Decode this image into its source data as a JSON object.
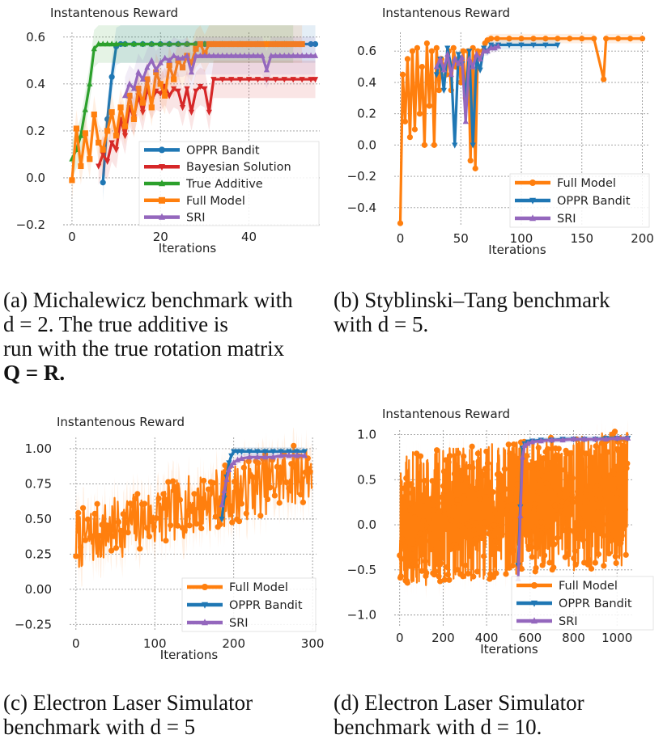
{
  "colors": {
    "oppr": "#1f77b4",
    "bayes": "#d62728",
    "true_additive": "#2ca02c",
    "full_model": "#ff7f0e",
    "sri": "#9467bd"
  },
  "captions": {
    "a": [
      "(a) Michalewicz benchmark with",
      "d = 2. The true additive is",
      "run with the true rotation matrix",
      "Q = R."
    ],
    "b": [
      "(b) Styblinski–Tang benchmark",
      "with d = 5."
    ],
    "c": [
      "(c) Electron Laser Simulator",
      "benchmark with d = 5"
    ],
    "d": [
      "(d) Electron Laser Simulator",
      "benchmark with d = 10."
    ]
  },
  "chart_data": [
    {
      "id": "a",
      "type": "line",
      "title": "Instantenous Reward",
      "xlabel": "Iterations",
      "ylabel": "",
      "xlim": [
        -2,
        56
      ],
      "ylim": [
        -0.2,
        0.62
      ],
      "xticks": [
        0,
        20,
        40
      ],
      "yticks": [
        -0.2,
        0.0,
        0.2,
        0.4,
        0.6
      ],
      "ytick_labels": [
        "−0.2",
        "0.0",
        "0.2",
        "0.4",
        "0.6"
      ],
      "legend": [
        "OPPR Bandit",
        "Bayesian Solution",
        "True Additive",
        "Full Model",
        "SRI"
      ],
      "legend_position": "lower-right",
      "series": [
        {
          "name": "OPPR Bandit",
          "color_key": "oppr",
          "marker": "circle",
          "x": [
            7,
            8,
            9,
            10,
            11,
            12,
            14,
            16,
            18,
            20,
            22,
            24,
            26,
            28,
            30,
            32,
            34,
            36,
            38,
            40,
            42,
            44,
            46,
            48,
            50,
            52,
            54,
            55
          ],
          "y": [
            -0.02,
            0.25,
            0.43,
            0.56,
            0.57,
            0.57,
            0.57,
            0.57,
            0.57,
            0.57,
            0.57,
            0.57,
            0.57,
            0.57,
            0.57,
            0.57,
            0.57,
            0.57,
            0.57,
            0.57,
            0.57,
            0.57,
            0.57,
            0.57,
            0.57,
            0.57,
            0.57,
            0.57
          ]
        },
        {
          "name": "Bayesian Solution",
          "color_key": "bayes",
          "marker": "triangle-down",
          "x": [
            6,
            7,
            8,
            9,
            10,
            11,
            12,
            13,
            14,
            15,
            16,
            17,
            18,
            19,
            20,
            21,
            22,
            23,
            24,
            25,
            26,
            27,
            28,
            29,
            30,
            31,
            32,
            34,
            36,
            38,
            40,
            42,
            44,
            46,
            48,
            50,
            52,
            54,
            55
          ],
          "y": [
            0.05,
            0.1,
            0.07,
            0.15,
            0.12,
            0.25,
            0.18,
            0.3,
            0.26,
            0.35,
            0.28,
            0.38,
            0.33,
            0.37,
            0.36,
            0.39,
            0.35,
            0.38,
            0.37,
            0.3,
            0.38,
            0.28,
            0.37,
            0.39,
            0.38,
            0.28,
            0.42,
            0.42,
            0.42,
            0.42,
            0.42,
            0.42,
            0.42,
            0.42,
            0.42,
            0.42,
            0.42,
            0.42,
            0.42
          ]
        },
        {
          "name": "True Additive",
          "color_key": "true_additive",
          "marker": "triangle-up",
          "x": [
            0,
            1,
            2,
            3,
            4,
            5,
            6,
            7,
            8,
            9,
            10,
            12,
            14,
            16,
            18,
            20,
            22,
            24,
            26,
            28,
            30,
            32,
            34,
            36,
            38,
            40,
            42,
            44,
            46,
            48,
            50
          ],
          "y": [
            0.08,
            0.12,
            0.18,
            0.29,
            0.4,
            0.55,
            0.57,
            0.57,
            0.57,
            0.57,
            0.57,
            0.57,
            0.57,
            0.57,
            0.57,
            0.57,
            0.57,
            0.57,
            0.57,
            0.57,
            0.57,
            0.57,
            0.57,
            0.57,
            0.57,
            0.57,
            0.57,
            0.57,
            0.57,
            0.57,
            0.57
          ]
        },
        {
          "name": "Full Model",
          "color_key": "full_model",
          "marker": "square",
          "x": [
            0,
            1,
            2,
            3,
            4,
            5,
            6,
            7,
            8,
            9,
            10,
            11,
            12,
            13,
            14,
            15,
            16,
            17,
            18,
            19,
            20,
            21,
            22,
            23,
            24,
            25,
            26,
            27,
            28,
            29,
            30,
            31,
            32,
            33,
            34,
            35,
            36,
            37,
            38,
            39,
            40,
            41,
            42,
            43,
            44,
            45,
            46,
            47,
            48,
            49,
            50,
            51,
            52
          ],
          "y": [
            -0.01,
            0.21,
            0.05,
            0.19,
            0.08,
            0.27,
            0.15,
            0.12,
            0.2,
            0.28,
            0.18,
            0.3,
            0.22,
            0.35,
            0.25,
            0.38,
            0.32,
            0.42,
            0.3,
            0.45,
            0.4,
            0.35,
            0.48,
            0.42,
            0.5,
            0.47,
            0.52,
            0.49,
            0.55,
            0.57,
            0.53,
            0.57,
            0.57,
            0.57,
            0.57,
            0.57,
            0.57,
            0.57,
            0.57,
            0.57,
            0.57,
            0.57,
            0.57,
            0.57,
            0.57,
            0.57,
            0.57,
            0.57,
            0.57,
            0.57,
            0.57,
            0.57,
            0.57
          ]
        },
        {
          "name": "SRI",
          "color_key": "sri",
          "marker": "triangle-up",
          "x": [
            12,
            13,
            14,
            15,
            16,
            17,
            18,
            19,
            20,
            21,
            22,
            23,
            24,
            25,
            26,
            27,
            28,
            29,
            30,
            31,
            32,
            33,
            34,
            35,
            36,
            37,
            38,
            39,
            40,
            41,
            42,
            43,
            44,
            45,
            46,
            47,
            48,
            49,
            50,
            51,
            52,
            53,
            54,
            55
          ],
          "y": [
            0.35,
            0.4,
            0.38,
            0.45,
            0.42,
            0.47,
            0.5,
            0.46,
            0.49,
            0.51,
            0.5,
            0.52,
            0.51,
            0.51,
            0.52,
            0.45,
            0.52,
            0.52,
            0.52,
            0.52,
            0.52,
            0.52,
            0.52,
            0.52,
            0.52,
            0.52,
            0.52,
            0.52,
            0.52,
            0.52,
            0.52,
            0.52,
            0.46,
            0.52,
            0.52,
            0.52,
            0.52,
            0.52,
            0.52,
            0.52,
            0.52,
            0.52,
            0.52,
            0.52
          ]
        }
      ]
    },
    {
      "id": "b",
      "type": "line",
      "title": "Instantenous Reward",
      "xlabel": "Iterations",
      "ylabel": "",
      "xlim": [
        -5,
        205
      ],
      "ylim": [
        -0.52,
        0.72
      ],
      "xticks": [
        0,
        50,
        100,
        150,
        200
      ],
      "yticks": [
        -0.4,
        -0.2,
        0.0,
        0.2,
        0.4,
        0.6
      ],
      "ytick_labels": [
        "−0.4",
        "−0.2",
        "0.0",
        "0.2",
        "0.4",
        "0.6"
      ],
      "legend": [
        "Full Model",
        "OPPR Bandit",
        "SRI"
      ],
      "legend_position": "lower-right",
      "series": [
        {
          "name": "Full Model",
          "color_key": "full_model",
          "marker": "circle",
          "x": [
            0,
            2,
            4,
            6,
            8,
            10,
            12,
            14,
            16,
            18,
            20,
            22,
            24,
            26,
            28,
            30,
            32,
            34,
            36,
            38,
            40,
            42,
            44,
            46,
            48,
            50,
            52,
            54,
            56,
            58,
            60,
            62,
            64,
            66,
            68,
            70,
            72,
            75,
            80,
            90,
            100,
            110,
            120,
            130,
            140,
            150,
            160,
            168,
            170,
            180,
            190,
            200
          ],
          "y": [
            -0.5,
            0.45,
            0.15,
            0.55,
            0.05,
            0.6,
            0.1,
            0.62,
            0.2,
            0.5,
            0.0,
            0.65,
            0.25,
            0.6,
            0.0,
            0.62,
            0.35,
            0.55,
            0.5,
            0.45,
            0.6,
            0.35,
            0.62,
            0.5,
            0.55,
            0.4,
            0.6,
            0.3,
            0.6,
            -0.1,
            0.62,
            -0.15,
            0.6,
            0.55,
            0.6,
            0.65,
            0.67,
            0.68,
            0.68,
            0.68,
            0.68,
            0.68,
            0.68,
            0.68,
            0.68,
            0.68,
            0.68,
            0.42,
            0.68,
            0.68,
            0.68,
            0.68
          ]
        },
        {
          "name": "OPPR Bandit",
          "color_key": "oppr",
          "marker": "triangle-down",
          "x": [
            30,
            33,
            36,
            39,
            42,
            45,
            48,
            51,
            54,
            57,
            60,
            63,
            66,
            69,
            72,
            75,
            78,
            81,
            90,
            100,
            110,
            120,
            130
          ],
          "y": [
            0.45,
            0.55,
            0.35,
            0.62,
            0.5,
            0.0,
            0.58,
            0.52,
            0.3,
            0.6,
            0.0,
            0.55,
            0.48,
            0.62,
            0.6,
            0.64,
            0.63,
            0.64,
            0.64,
            0.64,
            0.64,
            0.64,
            0.64
          ]
        },
        {
          "name": "SRI",
          "color_key": "sri",
          "marker": "triangle-up",
          "x": [
            30,
            33,
            36,
            39,
            42,
            45,
            48,
            51,
            54,
            57,
            60,
            63,
            66,
            69,
            72,
            75,
            78,
            81
          ],
          "y": [
            0.5,
            0.55,
            0.48,
            0.58,
            0.45,
            0.55,
            0.52,
            0.56,
            0.15,
            0.55,
            0.5,
            0.58,
            0.55,
            0.6,
            0.6,
            0.62,
            0.62,
            0.63
          ]
        }
      ]
    },
    {
      "id": "c",
      "type": "line",
      "title": "Instantenous Reward",
      "xlabel": "Iterations",
      "ylabel": "",
      "xlim": [
        -8,
        305
      ],
      "ylim": [
        -0.3,
        1.08
      ],
      "xticks": [
        0,
        100,
        200,
        300
      ],
      "yticks": [
        -0.25,
        0.0,
        0.25,
        0.5,
        0.75,
        1.0
      ],
      "ytick_labels": [
        "−0.25",
        "0.00",
        "0.25",
        "0.50",
        "0.75",
        "1.00"
      ],
      "legend": [
        "Full Model",
        "OPPR Bandit",
        "SRI"
      ],
      "legend_position": "lower-right",
      "series": [
        {
          "name": "Full Model",
          "color_key": "full_model",
          "marker": "circle",
          "generated": "noisy",
          "n": 300,
          "start": 0.35,
          "end": 0.85,
          "noise": 0.22,
          "seed": 7
        },
        {
          "name": "OPPR Bandit",
          "color_key": "oppr",
          "marker": "triangle-down",
          "x": [
            185,
            188,
            191,
            194,
            197,
            200,
            205,
            210,
            220,
            230,
            240,
            250,
            260,
            270,
            280,
            290
          ],
          "y": [
            0.5,
            0.65,
            0.8,
            0.9,
            0.95,
            0.98,
            0.98,
            0.98,
            0.98,
            0.98,
            0.98,
            0.98,
            0.98,
            0.98,
            0.98,
            0.98
          ]
        },
        {
          "name": "SRI",
          "color_key": "sri",
          "marker": "triangle-up",
          "x": [
            185,
            188,
            191,
            194,
            197,
            200,
            205,
            210,
            220,
            230,
            240,
            250,
            260,
            270,
            280,
            290
          ],
          "y": [
            0.6,
            0.7,
            0.78,
            0.85,
            0.88,
            0.9,
            0.92,
            0.93,
            0.94,
            0.94,
            0.94,
            0.94,
            0.95,
            0.95,
            0.95,
            0.95
          ]
        }
      ]
    },
    {
      "id": "d",
      "type": "line",
      "title": "Instantenous Reward",
      "xlabel": "Iterations",
      "ylabel": "",
      "xlim": [
        -25,
        1070
      ],
      "ylim": [
        -1.12,
        1.05
      ],
      "xticks": [
        0,
        200,
        400,
        600,
        800,
        1000
      ],
      "yticks": [
        -1.0,
        -0.5,
        0.0,
        0.5,
        1.0
      ],
      "ytick_labels": [
        "−1.0",
        "−0.5",
        "0.0",
        "0.5",
        "1.0"
      ],
      "legend": [
        "Full Model",
        "OPPR Bandit",
        "SRI"
      ],
      "legend_position": "lower-right",
      "series": [
        {
          "name": "Full Model",
          "color_key": "full_model",
          "marker": "circle",
          "generated": "noisy",
          "n": 1050,
          "start": 0.05,
          "end": 0.3,
          "noise": 0.75,
          "seed": 11
        },
        {
          "name": "OPPR Bandit",
          "color_key": "oppr",
          "marker": "triangle-down",
          "x": [
            545,
            555,
            565,
            575,
            590,
            610,
            650,
            700,
            750,
            800,
            850,
            900,
            950,
            1000,
            1050
          ],
          "y": [
            -0.45,
            0.2,
            0.85,
            0.9,
            0.92,
            0.93,
            0.94,
            0.94,
            0.95,
            0.95,
            0.95,
            0.95,
            0.96,
            0.96,
            0.96
          ]
        },
        {
          "name": "SRI",
          "color_key": "sri",
          "marker": "triangle-up",
          "x": [
            545,
            555,
            565,
            575,
            590,
            610,
            650,
            700,
            750,
            800,
            850,
            900,
            950,
            1000,
            1050
          ],
          "y": [
            -0.6,
            0.1,
            0.75,
            0.88,
            0.9,
            0.92,
            0.93,
            0.94,
            0.94,
            0.95,
            0.95,
            0.95,
            0.95,
            0.96,
            0.96
          ]
        }
      ]
    }
  ]
}
